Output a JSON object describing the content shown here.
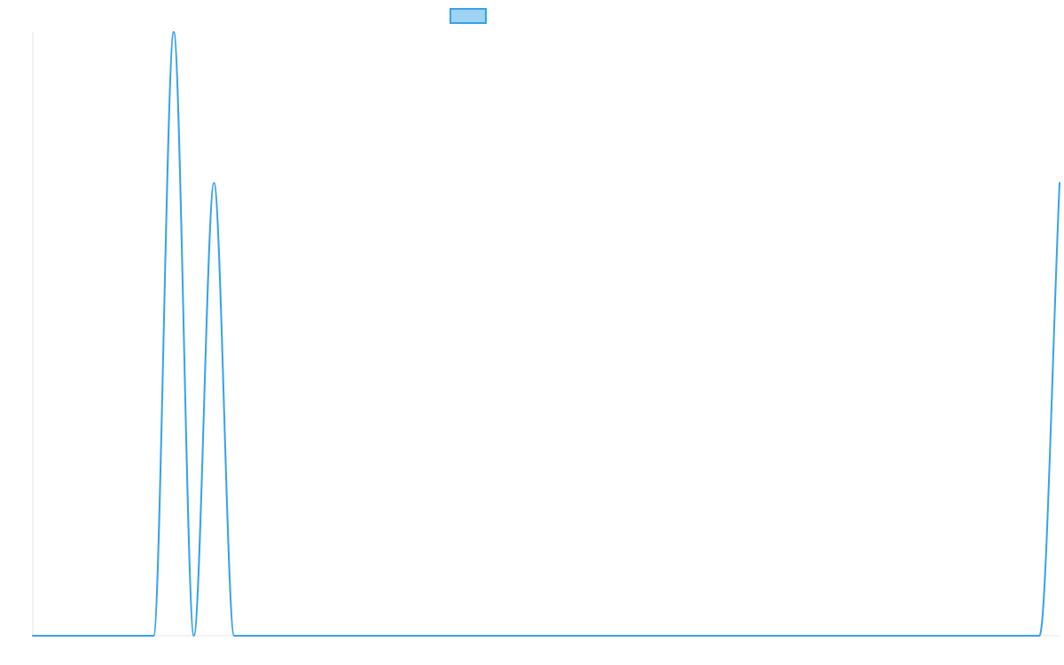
{
  "chart_data": {
    "type": "line",
    "legend": {
      "position": "top",
      "entries": [
        {
          "label": "",
          "color": "#36a2eb"
        }
      ]
    },
    "grid": false,
    "x_ticks_shown": false,
    "y_ticks_shown": false,
    "x": [
      0,
      1,
      2,
      3,
      4,
      5,
      6,
      7,
      8,
      9,
      10,
      11,
      12,
      13,
      14,
      15,
      16,
      17,
      18,
      19,
      20,
      21,
      22,
      23,
      24,
      25,
      26,
      27,
      28,
      29,
      30,
      31,
      32,
      33,
      34,
      35,
      36,
      37,
      38,
      39,
      40,
      41,
      42,
      43,
      44,
      45,
      46,
      47,
      48,
      49,
      50,
      51
    ],
    "xlim": [
      0,
      51
    ],
    "ylim": [
      0,
      100
    ],
    "series": [
      {
        "color": "#36a2eb",
        "fill": false,
        "values": [
          0,
          0,
          0,
          0,
          0,
          0,
          0,
          100,
          0,
          75,
          0,
          0,
          0,
          0,
          0,
          0,
          0,
          0,
          0,
          0,
          0,
          0,
          0,
          0,
          0,
          0,
          0,
          0,
          0,
          0,
          0,
          0,
          0,
          0,
          0,
          0,
          0,
          0,
          0,
          0,
          0,
          0,
          0,
          0,
          0,
          0,
          0,
          0,
          0,
          0,
          0,
          75
        ]
      }
    ]
  }
}
